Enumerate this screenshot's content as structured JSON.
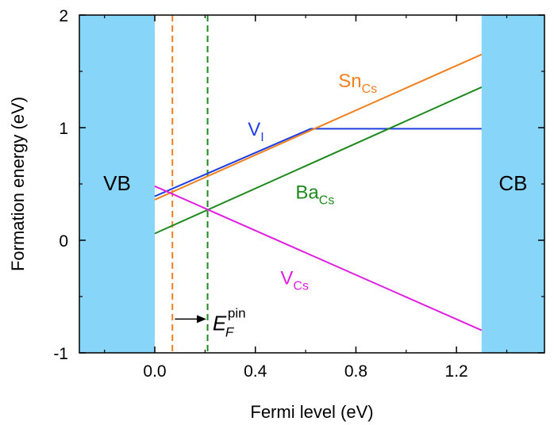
{
  "chart_data": {
    "type": "line",
    "xlabel": "Fermi level (eV)",
    "ylabel": "Formation energy (eV)",
    "xlim": [
      -0.3,
      1.55
    ],
    "ylim": [
      -1,
      2
    ],
    "xticks": [
      0.0,
      0.4,
      0.8,
      1.2
    ],
    "xtick_labels": [
      "0.0",
      "0.4",
      "0.8",
      "1.2"
    ],
    "yticks": [
      -1,
      0,
      1,
      2
    ],
    "ytick_labels": [
      "-1",
      "0",
      "1",
      "2"
    ],
    "grid": false,
    "band_regions": [
      {
        "label": "VB",
        "from": -0.3,
        "to": 0.0,
        "color": "#87D5F8"
      },
      {
        "label": "CB",
        "from": 1.3,
        "to": 1.55,
        "color": "#87D5F8"
      }
    ],
    "series": [
      {
        "name": "V",
        "subscript": "I",
        "color": "#1F3FE0",
        "label_at": [
          0.37,
          0.93
        ],
        "points": [
          [
            0.0,
            0.39
          ],
          [
            0.62,
            0.99
          ],
          [
            1.3,
            0.99
          ]
        ]
      },
      {
        "name": "Sn",
        "subscript": "Cs",
        "color": "#F08020",
        "label_at": [
          0.73,
          1.36
        ],
        "points": [
          [
            0.0,
            0.36
          ],
          [
            1.3,
            1.65
          ]
        ]
      },
      {
        "name": "Ba",
        "subscript": "Cs",
        "color": "#1E8A1E",
        "label_at": [
          0.56,
          0.37
        ],
        "points": [
          [
            0.0,
            0.06
          ],
          [
            1.3,
            1.36
          ]
        ]
      },
      {
        "name": "V",
        "subscript": "Cs",
        "color": "#E020E0",
        "label_at": [
          0.5,
          -0.39
        ],
        "points": [
          [
            0.0,
            0.48
          ],
          [
            1.3,
            -0.8
          ]
        ]
      }
    ],
    "vlines": [
      {
        "x": 0.07,
        "color": "#F08020",
        "style": "dashed"
      },
      {
        "x": 0.21,
        "color": "#1E8A1E",
        "style": "dashed"
      }
    ],
    "annotation": {
      "main": "E",
      "sub": "F",
      "sup": "pin",
      "arrow_from": 0.08,
      "arrow_to": 0.205,
      "arrow_y": -0.7,
      "text_at": [
        0.23,
        -0.8
      ]
    }
  }
}
